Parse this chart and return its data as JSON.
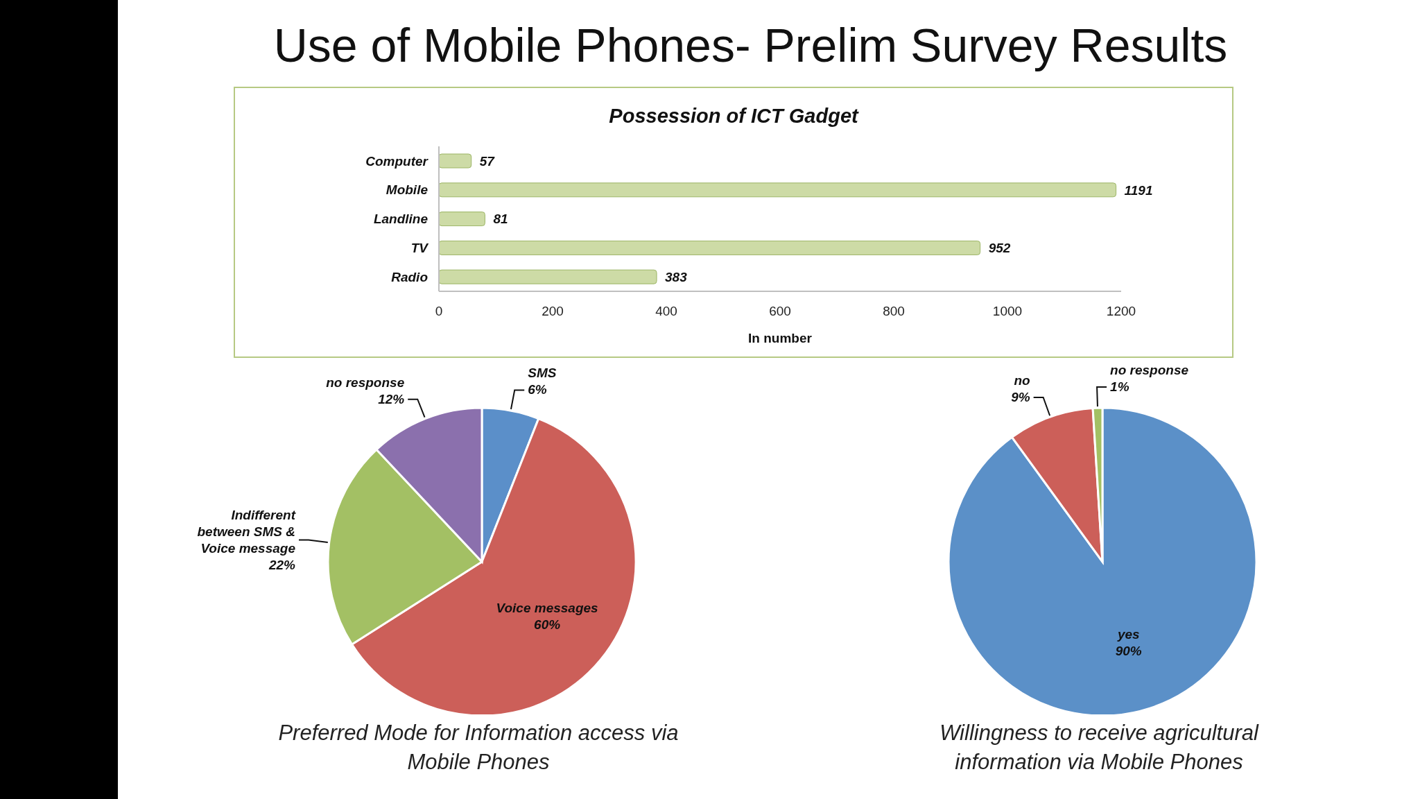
{
  "chart_data": [
    {
      "type": "other",
      "title": "Use of Mobile Phones- Prelim Survey Results"
    },
    {
      "type": "bar",
      "title": "Possession of ICT Gadget",
      "orientation": "horizontal",
      "categories": [
        "Computer",
        "Mobile",
        "Landline",
        "TV",
        "Radio"
      ],
      "values": [
        57,
        1191,
        81,
        952,
        383
      ],
      "color": "#cddba6",
      "xlim": [
        0,
        1200
      ],
      "xticks": [
        0,
        200,
        400,
        600,
        800,
        1000,
        1200
      ],
      "xlabel": "In number",
      "data_labels": true
    },
    {
      "type": "pie",
      "title": "Preferred Mode for Information access via Mobile Phones",
      "categories": [
        "SMS",
        "Voice messages",
        "Indifferent between SMS & Voice message",
        "no response"
      ],
      "values": [
        6,
        60,
        22,
        12
      ],
      "value_labels": [
        "6%",
        "60%",
        "22%",
        "12%"
      ],
      "colors": [
        "#5b8fc9",
        "#cc5f59",
        "#a3c064",
        "#8b70ad"
      ]
    },
    {
      "type": "pie",
      "title": "Willingness to receive agricultural information via Mobile Phones",
      "categories": [
        "yes",
        "no",
        "no response"
      ],
      "values": [
        90,
        9,
        1
      ],
      "value_labels": [
        "90%",
        "9%",
        "1%"
      ],
      "colors": [
        "#5b90c8",
        "#cc5f59",
        "#a3c064"
      ]
    }
  ]
}
